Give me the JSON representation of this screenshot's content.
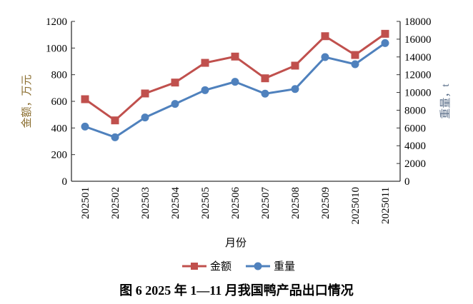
{
  "chart_data": {
    "type": "line",
    "title": "图 6 2025 年 1—11 月我国鸭产品出口情况",
    "xlabel": "月份",
    "ylabel_left": "金额，万元",
    "ylabel_right": "重量，t",
    "categories": [
      "202501",
      "202502",
      "202503",
      "202504",
      "202505",
      "202506",
      "202507",
      "202508",
      "202509",
      "2025010",
      "2025011"
    ],
    "ylim_left": [
      0,
      1200
    ],
    "yticks_left": [
      0,
      200,
      400,
      600,
      800,
      1000,
      1200
    ],
    "ylim_right": [
      0,
      18000
    ],
    "yticks_right": [
      0,
      2000,
      4000,
      6000,
      8000,
      10000,
      12000,
      14000,
      16000,
      18000
    ],
    "grid": false,
    "legend_position": "bottom",
    "series": [
      {
        "name": "金额",
        "axis": "left",
        "marker": "square",
        "color": "#c0504d",
        "values": [
          616,
          457,
          659,
          741,
          889,
          936,
          773,
          868,
          1089,
          948,
          1107
        ]
      },
      {
        "name": "重量",
        "axis": "right",
        "marker": "circle",
        "color": "#4f81bd",
        "values": [
          6160,
          4955,
          7180,
          8705,
          10260,
          11200,
          9860,
          10390,
          13980,
          13180,
          15560
        ]
      }
    ],
    "colors": {
      "left_label": "#8a6d2e",
      "right_label": "#5b6f8a",
      "axis": "#333333"
    }
  }
}
